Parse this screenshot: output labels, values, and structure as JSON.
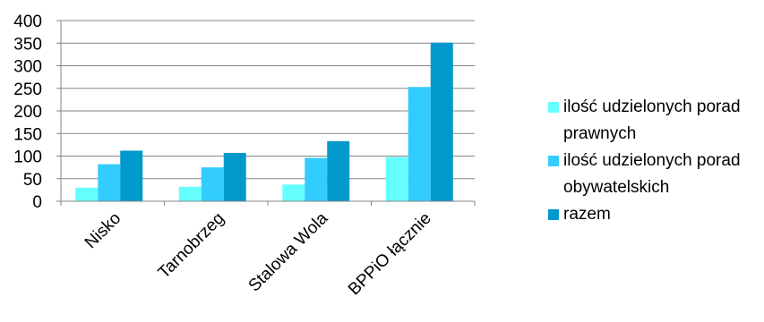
{
  "chart_data": {
    "type": "bar",
    "categories": [
      "Nisko",
      "Tarnobrzeg",
      "Stalowa Wola",
      "BPPiO łącznie"
    ],
    "series": [
      {
        "name": "ilość udzielonych porad prawnych",
        "values": [
          30,
          32,
          37,
          98
        ],
        "color": "#66ffff"
      },
      {
        "name": "ilość udzielonych porad obywatelskich",
        "values": [
          82,
          75,
          96,
          253
        ],
        "color": "#33ccff"
      },
      {
        "name": "razem",
        "values": [
          112,
          107,
          133,
          351
        ],
        "color": "#0099cc"
      }
    ],
    "y_ticks": [
      "0",
      "50",
      "100",
      "150",
      "200",
      "250",
      "300",
      "350",
      "400"
    ],
    "ylim": [
      0,
      400
    ],
    "grid": true,
    "legend_position": "right"
  }
}
